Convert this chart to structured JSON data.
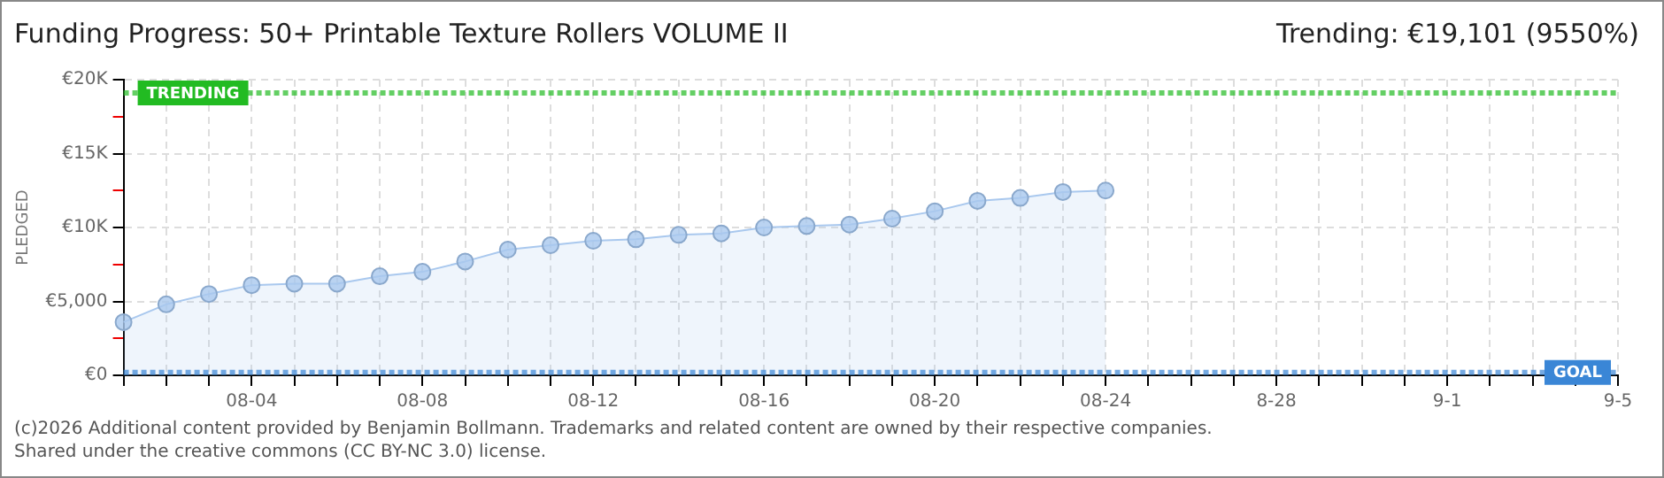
{
  "chart_data": {
    "type": "area",
    "title": "Funding Progress: 50+ Printable Texture Rollers VOLUME II",
    "subtitle": "Trending: €19,101 (9550%)",
    "ylabel": "PLEDGED",
    "categories": [
      null,
      null,
      null,
      "08-04",
      null,
      null,
      null,
      "08-08",
      null,
      null,
      null,
      "08-12",
      null,
      null,
      null,
      "08-16",
      null,
      null,
      null,
      "08-20",
      null,
      null,
      null,
      "08-24",
      null,
      null,
      null,
      "8-28",
      null,
      null,
      null,
      "9-1",
      null,
      null,
      null,
      "9-5"
    ],
    "series": [
      {
        "color": "#a9c8ee",
        "values": [
          3600,
          4800,
          5500,
          6100,
          6200,
          6200,
          6700,
          7000,
          7700,
          8500,
          8800,
          9100,
          9200,
          9500,
          9600,
          10000,
          10100,
          10200,
          10600,
          11100,
          11800,
          12000,
          12400,
          12500,
          null,
          null,
          null,
          null,
          null,
          null,
          null,
          null,
          null,
          null,
          null,
          null
        ]
      }
    ],
    "ylim": [
      0,
      20000
    ],
    "yticks": [
      {
        "value": 0,
        "label": "€0"
      },
      {
        "value": 2500,
        "label": null
      },
      {
        "value": 5000,
        "label": "€5,000"
      },
      {
        "value": 7500,
        "label": null
      },
      {
        "value": 10000,
        "label": "€10K"
      },
      {
        "value": 12500,
        "label": null
      },
      {
        "value": 15000,
        "label": "€15K"
      },
      {
        "value": 17500,
        "label": null
      },
      {
        "value": 20000,
        "label": "€20K"
      }
    ],
    "ref_lines": [
      {
        "axis": "y",
        "value": 19101,
        "label": "TRENDING",
        "color": "#22bb22",
        "line_style": "dotted"
      },
      {
        "axis": "y",
        "value": 200,
        "label": "GOAL",
        "color": "#3a86d6",
        "line_style": "dotted"
      }
    ],
    "grid": true,
    "marker": "circle",
    "legend": false,
    "annotations": [
      "(c)2026 Additional content provided by Benjamin Bollmann. Trademarks and related content are owned by their respective companies.",
      "Shared under the creative commons (CC BY-NC 3.0) license."
    ]
  }
}
